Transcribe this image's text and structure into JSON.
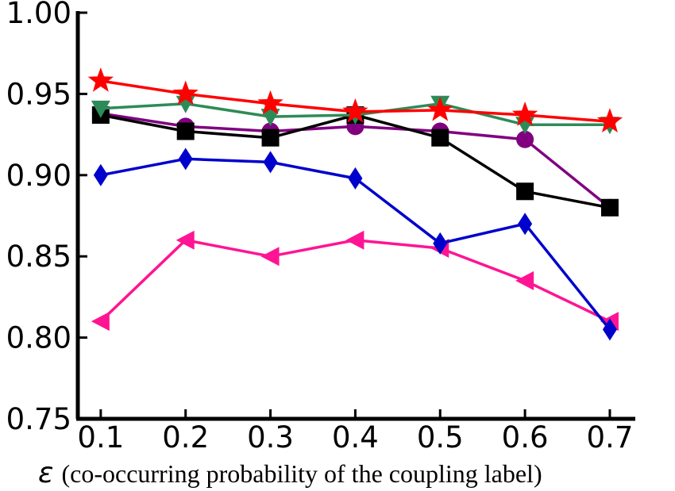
{
  "chart_data": {
    "type": "line",
    "title": "",
    "xlabel_symbol": "ε",
    "xlabel_text": "(co-occurring probability of the coupling label)",
    "ylabel": "",
    "x": [
      0.1,
      0.2,
      0.3,
      0.4,
      0.5,
      0.6,
      0.7
    ],
    "x_tick_labels": [
      "0.1",
      "0.2",
      "0.3",
      "0.4",
      "0.5",
      "0.6",
      "0.7"
    ],
    "y_tick_labels": [
      "0.75",
      "0.80",
      "0.85",
      "0.90",
      "0.95",
      "1.00"
    ],
    "xlim": [
      0.073,
      0.73
    ],
    "ylim": [
      0.75,
      1.0
    ],
    "grid": false,
    "legend": "none",
    "series": [
      {
        "color": "#ff1493",
        "marker": "triangle-left",
        "values": [
          0.81,
          0.86,
          0.85,
          0.86,
          0.855,
          0.835,
          0.81
        ]
      },
      {
        "color": "#0000cc",
        "marker": "diamond",
        "values": [
          0.9,
          0.91,
          0.908,
          0.898,
          0.858,
          0.87,
          0.805
        ]
      },
      {
        "color": "#800080",
        "marker": "circle",
        "values": [
          0.938,
          0.93,
          0.927,
          0.93,
          0.927,
          0.922,
          0.88
        ]
      },
      {
        "color": "#000000",
        "marker": "square",
        "values": [
          0.937,
          0.927,
          0.923,
          0.937,
          0.923,
          0.89,
          0.88
        ]
      },
      {
        "color": "#2e8b57",
        "marker": "triangle-down",
        "values": [
          0.941,
          0.944,
          0.936,
          0.937,
          0.944,
          0.931,
          0.931
        ]
      },
      {
        "color": "#ff0000",
        "marker": "star",
        "values": [
          0.958,
          0.95,
          0.944,
          0.939,
          0.94,
          0.937,
          0.933
        ]
      }
    ]
  }
}
